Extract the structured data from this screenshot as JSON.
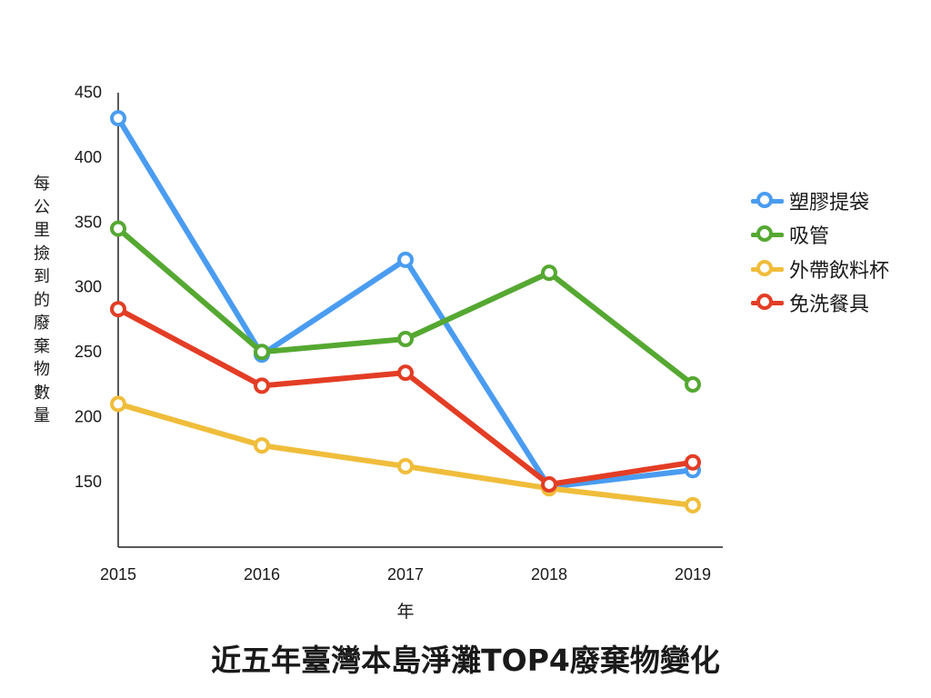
{
  "chart_data": {
    "type": "line",
    "title": "近五年臺灣本島淨灘TOP4廢棄物變化",
    "xlabel": "年",
    "ylabel": "每公里撿到的廢棄物數量",
    "x": [
      "2015",
      "2016",
      "2017",
      "2018",
      "2019"
    ],
    "yticks": [
      "150",
      "200",
      "250",
      "300",
      "350",
      "400",
      "450"
    ],
    "ylim": [
      115,
      455
    ],
    "grid": false,
    "legend_position": "right",
    "series": [
      {
        "name": "塑膠提袋",
        "color": "#4a9cf0",
        "values": [
          439,
          257,
          330,
          155,
          168
        ]
      },
      {
        "name": "吸管",
        "color": "#55a831",
        "values": [
          354,
          259,
          269,
          320,
          234
        ]
      },
      {
        "name": "外帶飲料杯",
        "color": "#f0bd3b",
        "values": [
          219,
          187,
          171,
          154,
          141
        ]
      },
      {
        "name": "免洗餐具",
        "color": "#e33d25",
        "values": [
          292,
          233,
          243,
          157,
          174
        ]
      }
    ]
  }
}
